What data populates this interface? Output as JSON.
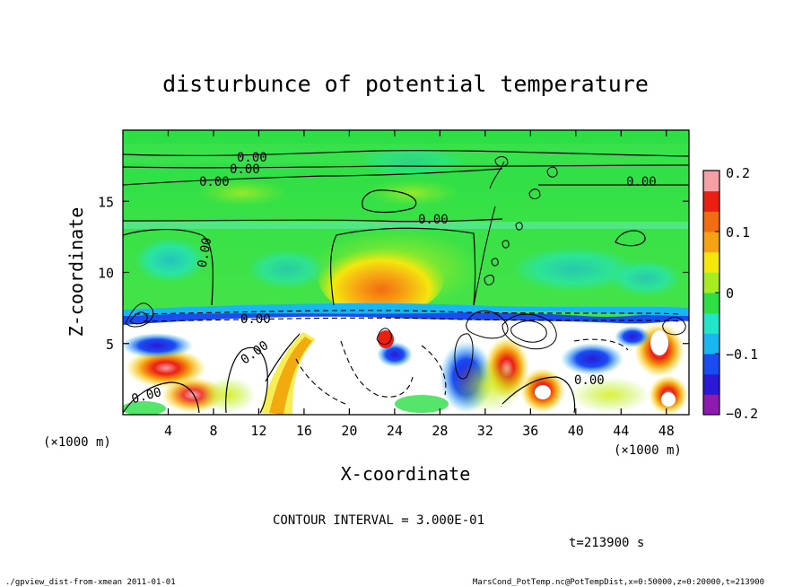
{
  "chart_data": {
    "type": "heatmap",
    "title": "disturbunce of potential temperature",
    "xlabel": "X-coordinate",
    "ylabel": "Z-coordinate",
    "x_unit_label": "(×1000 m)",
    "x_unit_label_right": "(×1000 m)",
    "xlim": [
      0,
      50
    ],
    "ylim": [
      0,
      20
    ],
    "x_ticks": [
      4,
      8,
      12,
      16,
      20,
      24,
      28,
      32,
      36,
      40,
      44,
      48
    ],
    "y_ticks": [
      5,
      10,
      15
    ],
    "colorbar": {
      "min": -0.2,
      "max": 0.2,
      "ticks": [
        "0.2",
        "0.1",
        "0",
        "−0.1",
        "−0.2"
      ],
      "tick_values": [
        0.2,
        0.1,
        0,
        -0.1,
        -0.2
      ],
      "colors": [
        "#8e1bb0",
        "#2a1ad8",
        "#1a4cf2",
        "#18b7f0",
        "#22e6c8",
        "#2bdf45",
        "#a7ec20",
        "#f4e70e",
        "#f6a313",
        "#f26d12",
        "#ea1f12",
        "#f6a0a6"
      ]
    },
    "contour_labels": [
      "0.00",
      "0.00",
      "0.00",
      "0.00",
      "0.00",
      "0.00",
      "0.00",
      "0.00",
      "0.00",
      "0.00"
    ],
    "contour_interval_text": "CONTOUR INTERVAL = 3.000E-01",
    "time_text": "t=213900 s",
    "grid": false,
    "legend": "colorbar-right"
  },
  "footer": {
    "left": "./gpview_dist-from-xmean  2011-01-01",
    "right": "MarsCond_PotTemp.nc@PotTempDist,x=0:50000,z=0:20000,t=213900"
  }
}
